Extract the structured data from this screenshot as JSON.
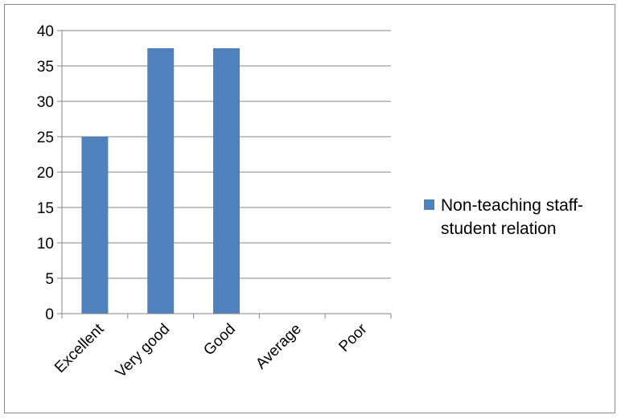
{
  "chart_data": {
    "type": "bar",
    "categories": [
      "Excellent",
      "Very good",
      "Good",
      "Average",
      "Poor"
    ],
    "series": [
      {
        "name": "Non-teaching staff-student relation",
        "values": [
          25,
          37.5,
          37.5,
          0,
          0
        ],
        "color": "#4f81bd"
      }
    ],
    "yticks": [
      0,
      5,
      10,
      15,
      20,
      25,
      30,
      35,
      40
    ],
    "ylim": [
      0,
      40
    ],
    "grid": true,
    "legend_position": "right",
    "legend_lines": [
      "Non-teaching staff-",
      "student relation"
    ]
  }
}
